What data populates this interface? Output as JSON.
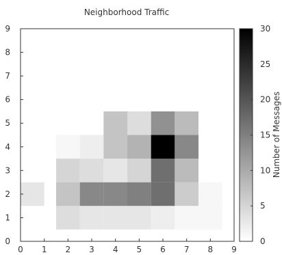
{
  "chart_data": {
    "type": "heatmap",
    "title": "Neighborhood Traffic",
    "xlim": [
      0,
      9
    ],
    "ylim": [
      0,
      9
    ],
    "x_ticks": [
      "0",
      "1",
      "2",
      "3",
      "4",
      "5",
      "6",
      "7",
      "8",
      "9"
    ],
    "y_ticks": [
      "0",
      "1",
      "2",
      "3",
      "4",
      "5",
      "6",
      "7",
      "8",
      "9"
    ],
    "cells": [
      {
        "x": 1,
        "y": 1,
        "v": 0
      },
      {
        "x": 2,
        "y": 1,
        "v": 4
      },
      {
        "x": 3,
        "y": 1,
        "v": 3
      },
      {
        "x": 4,
        "y": 1,
        "v": 3
      },
      {
        "x": 5,
        "y": 1,
        "v": 3
      },
      {
        "x": 6,
        "y": 1,
        "v": 2
      },
      {
        "x": 7,
        "y": 1,
        "v": 1
      },
      {
        "x": 8,
        "y": 1,
        "v": 1
      },
      {
        "x": 0.5,
        "y": 2,
        "v": 3
      },
      {
        "x": 2,
        "y": 2,
        "v": 7
      },
      {
        "x": 3,
        "y": 2,
        "v": 14
      },
      {
        "x": 4,
        "y": 2,
        "v": 14
      },
      {
        "x": 5,
        "y": 2,
        "v": 15
      },
      {
        "x": 6,
        "y": 2,
        "v": 17
      },
      {
        "x": 7,
        "y": 2,
        "v": 6
      },
      {
        "x": 8,
        "y": 2,
        "v": 1
      },
      {
        "x": 2,
        "y": 3,
        "v": 5
      },
      {
        "x": 3,
        "y": 3,
        "v": 4
      },
      {
        "x": 4,
        "y": 3,
        "v": 3
      },
      {
        "x": 5,
        "y": 3,
        "v": 5
      },
      {
        "x": 6,
        "y": 3,
        "v": 17
      },
      {
        "x": 7,
        "y": 3,
        "v": 8
      },
      {
        "x": 2,
        "y": 4,
        "v": 1
      },
      {
        "x": 3,
        "y": 4,
        "v": 2
      },
      {
        "x": 4,
        "y": 4,
        "v": 7
      },
      {
        "x": 5,
        "y": 4,
        "v": 9
      },
      {
        "x": 6,
        "y": 4,
        "v": 30
      },
      {
        "x": 7,
        "y": 4,
        "v": 14
      },
      {
        "x": 4,
        "y": 5,
        "v": 7
      },
      {
        "x": 5,
        "y": 5,
        "v": 4
      },
      {
        "x": 6,
        "y": 5,
        "v": 13
      },
      {
        "x": 7,
        "y": 5,
        "v": 8
      }
    ],
    "colorbar": {
      "label": "Number of Messages",
      "range": [
        0,
        30
      ],
      "ticks": [
        "0",
        "5",
        "10",
        "15",
        "20",
        "25",
        "30"
      ],
      "colormap": "greys",
      "low_color": "#ffffff",
      "high_color": "#000000"
    }
  }
}
